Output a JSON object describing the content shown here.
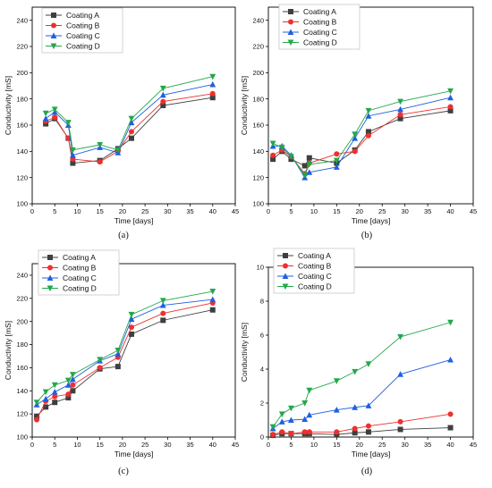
{
  "chart_data": [
    {
      "type": "line",
      "panel_label": "(a)",
      "xlabel": "Time [days]",
      "ylabel": "Conductivity [mS]",
      "xlim": [
        0,
        45
      ],
      "ylim": [
        100,
        250
      ],
      "xticks": [
        0,
        5,
        10,
        15,
        20,
        25,
        30,
        35,
        40,
        45
      ],
      "yticks": [
        100,
        120,
        140,
        160,
        180,
        200,
        220,
        240
      ],
      "legend_position": "top-left",
      "x": [
        3,
        5,
        8,
        9,
        15,
        19,
        22,
        29,
        40
      ],
      "series": [
        {
          "name": "Coating A",
          "values": [
            161,
            165,
            150,
            131,
            133,
            142,
            150,
            175,
            181
          ]
        },
        {
          "name": "Coating B",
          "values": [
            163,
            166,
            150,
            134,
            132,
            140,
            155,
            178,
            184
          ]
        },
        {
          "name": "Coating C",
          "values": [
            165,
            170,
            160,
            137,
            143,
            139,
            162,
            183,
            191
          ]
        },
        {
          "name": "Coating D",
          "values": [
            169,
            172,
            162,
            141,
            145,
            141,
            165,
            188,
            197
          ]
        }
      ]
    },
    {
      "type": "line",
      "panel_label": "(b)",
      "xlabel": "Time [days]",
      "ylabel": "Conductivity [mS]",
      "xlim": [
        0,
        45
      ],
      "ylim": [
        100,
        250
      ],
      "xticks": [
        0,
        5,
        10,
        15,
        20,
        25,
        30,
        35,
        40,
        45
      ],
      "yticks": [
        100,
        120,
        140,
        160,
        180,
        200,
        220,
        240
      ],
      "legend_position": "top-left",
      "x": [
        1,
        3,
        5,
        8,
        9,
        15,
        19,
        22,
        29,
        40
      ],
      "series": [
        {
          "name": "Coating A",
          "values": [
            134,
            140,
            134,
            129,
            135,
            131,
            141,
            155,
            165,
            171
          ]
        },
        {
          "name": "Coating B",
          "values": [
            137,
            141,
            136,
            123,
            131,
            138,
            140,
            152,
            168,
            174
          ]
        },
        {
          "name": "Coating C",
          "values": [
            144,
            144,
            137,
            120,
            124,
            128,
            150,
            167,
            172,
            181
          ]
        },
        {
          "name": "Coating D",
          "values": [
            146,
            143,
            136,
            122,
            130,
            133,
            153,
            171,
            178,
            186
          ]
        }
      ]
    },
    {
      "type": "line",
      "panel_label": "(c)",
      "xlabel": "Time [days]",
      "ylabel": "Conductivity [mS]",
      "xlim": [
        0,
        45
      ],
      "ylim": [
        100,
        250
      ],
      "xticks": [
        0,
        5,
        10,
        15,
        20,
        25,
        30,
        35,
        40,
        45
      ],
      "yticks": [
        100,
        120,
        140,
        160,
        180,
        200,
        220,
        240
      ],
      "legend_position": "top-left",
      "x": [
        1,
        3,
        5,
        8,
        9,
        15,
        19,
        22,
        29,
        40
      ],
      "series": [
        {
          "name": "Coating A",
          "values": [
            118,
            126,
            130,
            134,
            140,
            159,
            161,
            189,
            201,
            210
          ]
        },
        {
          "name": "Coating B",
          "values": [
            115,
            131,
            135,
            137,
            145,
            160,
            169,
            195,
            207,
            216
          ]
        },
        {
          "name": "Coating C",
          "values": [
            128,
            133,
            139,
            145,
            150,
            166,
            172,
            202,
            214,
            219
          ]
        },
        {
          "name": "Coating D",
          "values": [
            130,
            139,
            145,
            149,
            154,
            167,
            175,
            206,
            218,
            226
          ]
        }
      ]
    },
    {
      "type": "line",
      "panel_label": "(d)",
      "xlabel": "Time [days]",
      "ylabel": "Conductivity [mS]",
      "xlim": [
        0,
        45
      ],
      "ylim": [
        0,
        10
      ],
      "xticks": [
        0,
        5,
        10,
        15,
        20,
        25,
        30,
        35,
        40,
        45
      ],
      "yticks": [
        0,
        2,
        4,
        6,
        8,
        10
      ],
      "legend_position": "top-left",
      "x": [
        1,
        3,
        5,
        8,
        9,
        15,
        19,
        22,
        29,
        40
      ],
      "series": [
        {
          "name": "Coating A",
          "values": [
            0.1,
            0.2,
            0.2,
            0.2,
            0.2,
            0.15,
            0.25,
            0.3,
            0.45,
            0.55
          ]
        },
        {
          "name": "Coating B",
          "values": [
            0.15,
            0.3,
            0.2,
            0.3,
            0.3,
            0.3,
            0.5,
            0.65,
            0.9,
            1.35
          ]
        },
        {
          "name": "Coating C",
          "values": [
            0.5,
            0.9,
            1.0,
            1.05,
            1.3,
            1.6,
            1.75,
            1.85,
            3.7,
            4.55
          ]
        },
        {
          "name": "Coating D",
          "values": [
            0.6,
            1.35,
            1.7,
            2.0,
            2.75,
            3.3,
            3.85,
            4.3,
            5.9,
            6.75
          ]
        }
      ]
    }
  ],
  "series_styles": [
    {
      "color": "#3f3f3f",
      "marker": "square"
    },
    {
      "color": "#ee3030",
      "marker": "circle"
    },
    {
      "color": "#1f5fe0",
      "marker": "triangle-up"
    },
    {
      "color": "#22a84a",
      "marker": "triangle-down"
    }
  ]
}
